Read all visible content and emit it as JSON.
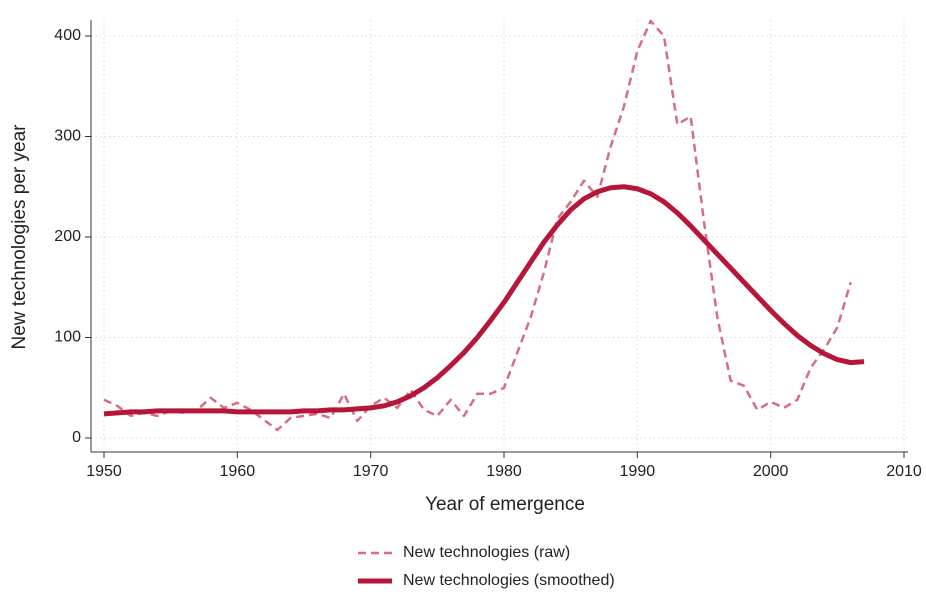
{
  "chart_data": {
    "type": "line",
    "xlabel": "Year of emergence",
    "ylabel": "New technologies per year",
    "x": [
      1950,
      1951,
      1952,
      1953,
      1954,
      1955,
      1956,
      1957,
      1958,
      1959,
      1960,
      1961,
      1962,
      1963,
      1964,
      1965,
      1966,
      1967,
      1968,
      1969,
      1970,
      1971,
      1972,
      1973,
      1974,
      1975,
      1976,
      1977,
      1978,
      1979,
      1980,
      1981,
      1982,
      1983,
      1984,
      1985,
      1986,
      1987,
      1988,
      1989,
      1990,
      1991,
      1992,
      1993,
      1994,
      1995,
      1996,
      1997,
      1998,
      1999,
      2000,
      2001,
      2002,
      2003,
      2004,
      2005,
      2006,
      2007
    ],
    "series": [
      {
        "name": "New technologies (raw)",
        "color": "#d86b8a",
        "dashed": true,
        "values": [
          38,
          32,
          22,
          25,
          22,
          27,
          25,
          28,
          40,
          30,
          35,
          28,
          18,
          8,
          20,
          22,
          24,
          20,
          44,
          17,
          32,
          40,
          30,
          48,
          28,
          22,
          38,
          22,
          44,
          44,
          50,
          85,
          120,
          165,
          218,
          235,
          256,
          240,
          290,
          330,
          385,
          415,
          400,
          312,
          320,
          215,
          120,
          57,
          52,
          28,
          36,
          30,
          38,
          70,
          88,
          110,
          155,
          null
        ]
      },
      {
        "name": "New technologies (smoothed)",
        "color": "#b5163a",
        "dashed": false,
        "values": [
          24,
          25,
          26,
          26,
          27,
          27,
          27,
          27,
          27,
          27,
          26,
          26,
          26,
          26,
          26,
          27,
          27,
          28,
          28,
          29,
          30,
          32,
          36,
          42,
          50,
          60,
          72,
          85,
          100,
          117,
          135,
          155,
          175,
          195,
          212,
          227,
          238,
          245,
          249,
          250,
          248,
          243,
          235,
          224,
          211,
          197,
          183,
          169,
          155,
          141,
          127,
          114,
          102,
          92,
          84,
          78,
          75,
          76
        ]
      }
    ],
    "xlim": [
      1950,
      2010
    ],
    "xticks": [
      1950,
      1960,
      1970,
      1980,
      1990,
      2000,
      2010
    ],
    "ylim": [
      0,
      400
    ],
    "yticks": [
      0,
      100,
      200,
      300,
      400
    ],
    "grid": true,
    "legend": "bottom"
  }
}
